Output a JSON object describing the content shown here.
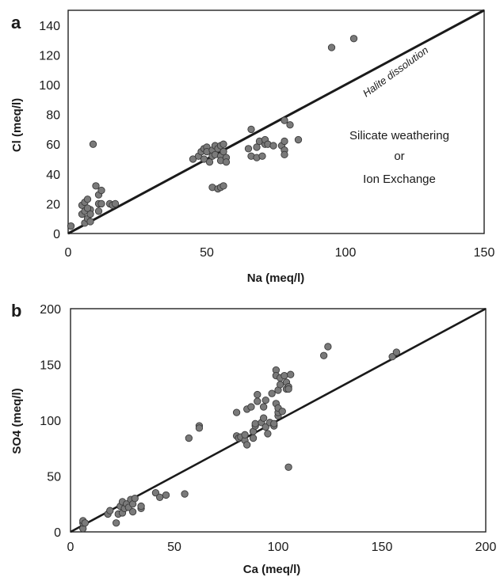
{
  "chart_data": [
    {
      "panel_label": "a",
      "type": "scatter",
      "xlabel": "Na (meq/l)",
      "ylabel": "Cl  (meq/l)",
      "xlim": [
        0,
        150
      ],
      "ylim": [
        0,
        150
      ],
      "x_ticks": [
        "0",
        "50",
        "100",
        "150"
      ],
      "y_ticks": [
        "0",
        "20",
        "40",
        "60",
        "80",
        "100",
        "120",
        "140"
      ],
      "grid": false,
      "marker_color": "#7a7a7a",
      "line": {
        "label": "Halite dissolution",
        "from": [
          0,
          0
        ],
        "to": [
          150,
          150
        ]
      },
      "annotation_lines": [
        "Silicate weathering",
        "or",
        "Ion Exchange"
      ],
      "points": [
        [
          1,
          5
        ],
        [
          5,
          13
        ],
        [
          5,
          19
        ],
        [
          6,
          15
        ],
        [
          6,
          7
        ],
        [
          6,
          21
        ],
        [
          7,
          23
        ],
        [
          7,
          10
        ],
        [
          8,
          16
        ],
        [
          8,
          13
        ],
        [
          8,
          8
        ],
        [
          7,
          17
        ],
        [
          9,
          60
        ],
        [
          10,
          32
        ],
        [
          11,
          26
        ],
        [
          11,
          20
        ],
        [
          11,
          15
        ],
        [
          12,
          20
        ],
        [
          12,
          29
        ],
        [
          15,
          20
        ],
        [
          16,
          19
        ],
        [
          17,
          20
        ],
        [
          45,
          50
        ],
        [
          47,
          52
        ],
        [
          48,
          55
        ],
        [
          49,
          57
        ],
        [
          49,
          50
        ],
        [
          50,
          58
        ],
        [
          50,
          55
        ],
        [
          51,
          48
        ],
        [
          52,
          56
        ],
        [
          52,
          52
        ],
        [
          52,
          31
        ],
        [
          53,
          59
        ],
        [
          53,
          53
        ],
        [
          54,
          30
        ],
        [
          54,
          57
        ],
        [
          55,
          31
        ],
        [
          55,
          59
        ],
        [
          55,
          52
        ],
        [
          55,
          49
        ],
        [
          56,
          60
        ],
        [
          56,
          32
        ],
        [
          56,
          55
        ],
        [
          57,
          51
        ],
        [
          57,
          48
        ],
        [
          65,
          57
        ],
        [
          66,
          70
        ],
        [
          66,
          52
        ],
        [
          68,
          51
        ],
        [
          68,
          58
        ],
        [
          69,
          62
        ],
        [
          70,
          52
        ],
        [
          71,
          60
        ],
        [
          71,
          63
        ],
        [
          72,
          60
        ],
        [
          74,
          59
        ],
        [
          77,
          59
        ],
        [
          78,
          76
        ],
        [
          78,
          62
        ],
        [
          78,
          56
        ],
        [
          78,
          53
        ],
        [
          80,
          73
        ],
        [
          83,
          63
        ],
        [
          95,
          125
        ],
        [
          103,
          131
        ]
      ]
    },
    {
      "panel_label": "b",
      "type": "scatter",
      "xlabel": "Ca (meq/l)",
      "ylabel": "SO4 (meq/l)",
      "xlim": [
        0,
        200
      ],
      "ylim": [
        0,
        200
      ],
      "x_ticks": [
        "0",
        "50",
        "100",
        "150",
        "200"
      ],
      "y_ticks": [
        "0",
        "50",
        "100",
        "150",
        "200"
      ],
      "grid": false,
      "marker_color": "#7a7a7a",
      "line": {
        "label": "",
        "from": [
          0,
          0
        ],
        "to": [
          200,
          200
        ]
      },
      "annotation_lines": [],
      "points": [
        [
          6,
          3
        ],
        [
          6,
          8
        ],
        [
          6,
          10
        ],
        [
          7,
          8
        ],
        [
          18,
          16
        ],
        [
          19,
          19
        ],
        [
          22,
          8
        ],
        [
          23,
          16
        ],
        [
          24,
          23
        ],
        [
          25,
          17
        ],
        [
          25,
          27
        ],
        [
          26,
          21
        ],
        [
          27,
          25
        ],
        [
          28,
          22
        ],
        [
          29,
          29
        ],
        [
          30,
          25
        ],
        [
          30,
          18
        ],
        [
          31,
          30
        ],
        [
          34,
          21
        ],
        [
          34,
          23
        ],
        [
          41,
          35
        ],
        [
          43,
          31
        ],
        [
          46,
          33
        ],
        [
          55,
          34
        ],
        [
          57,
          84
        ],
        [
          62,
          95
        ],
        [
          62,
          93
        ],
        [
          80,
          86
        ],
        [
          80,
          107
        ],
        [
          81,
          84
        ],
        [
          82,
          85
        ],
        [
          84,
          82
        ],
        [
          84,
          87
        ],
        [
          85,
          78
        ],
        [
          85,
          110
        ],
        [
          87,
          112
        ],
        [
          88,
          90
        ],
        [
          88,
          84
        ],
        [
          89,
          95
        ],
        [
          89,
          97
        ],
        [
          90,
          117
        ],
        [
          90,
          123
        ],
        [
          92,
          98
        ],
        [
          93,
          102
        ],
        [
          93,
          112
        ],
        [
          94,
          94
        ],
        [
          94,
          118
        ],
        [
          95,
          88
        ],
        [
          96,
          98
        ],
        [
          97,
          124
        ],
        [
          98,
          95
        ],
        [
          98,
          97
        ],
        [
          99,
          115
        ],
        [
          99,
          145
        ],
        [
          99,
          140
        ],
        [
          100,
          104
        ],
        [
          100,
          107
        ],
        [
          100,
          111
        ],
        [
          100,
          127
        ],
        [
          101,
          132
        ],
        [
          101,
          138
        ],
        [
          102,
          108
        ],
        [
          103,
          140
        ],
        [
          104,
          134
        ],
        [
          104,
          128
        ],
        [
          105,
          130
        ],
        [
          105,
          58
        ],
        [
          105,
          128
        ],
        [
          106,
          141
        ],
        [
          122,
          158
        ],
        [
          124,
          166
        ],
        [
          155,
          157
        ],
        [
          157,
          161
        ]
      ]
    }
  ]
}
